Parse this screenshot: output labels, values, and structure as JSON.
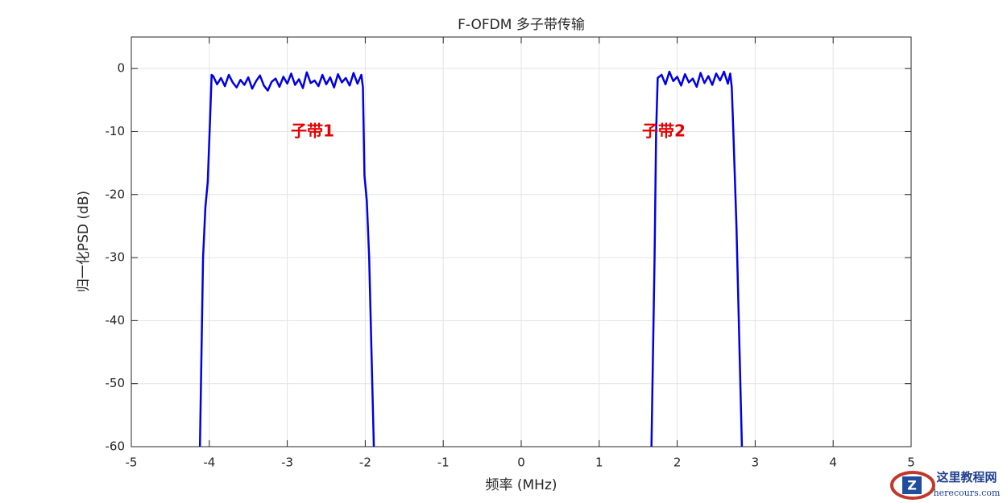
{
  "chart_data": {
    "type": "line",
    "title": "F-OFDM 多子带传输",
    "x_label": "频率 (MHz)",
    "y_label": "归一化PSD (dB)",
    "xlim": [
      -5,
      5
    ],
    "ylim": [
      -60,
      5
    ],
    "xticks": [
      -5,
      -4,
      -3,
      -2,
      -1,
      0,
      1,
      2,
      3,
      4,
      5
    ],
    "yticks": [
      -60,
      -50,
      -40,
      -30,
      -20,
      -10,
      0
    ],
    "grid": true,
    "annotations": [
      "子带1",
      "子带2"
    ],
    "x": [
      -4.12,
      -4.08,
      -4.05,
      -4.02,
      -3.99,
      -3.97,
      -3.95,
      -3.9,
      -3.85,
      -3.8,
      -3.75,
      -3.7,
      -3.65,
      -3.6,
      -3.55,
      -3.5,
      -3.45,
      -3.4,
      -3.35,
      -3.3,
      -3.25,
      -3.2,
      -3.15,
      -3.1,
      -3.05,
      -3.0,
      -2.95,
      -2.9,
      -2.85,
      -2.8,
      -2.75,
      -2.7,
      -2.65,
      -2.6,
      -2.55,
      -2.5,
      -2.45,
      -2.4,
      -2.35,
      -2.3,
      -2.25,
      -2.2,
      -2.15,
      -2.1,
      -2.05,
      -2.03,
      -2.01,
      -1.98,
      -1.95,
      -1.92,
      -1.89,
      0,
      1.67,
      1.71,
      1.73,
      1.75,
      1.8,
      1.85,
      1.9,
      1.95,
      2.0,
      2.05,
      2.1,
      2.15,
      2.2,
      2.25,
      2.3,
      2.35,
      2.4,
      2.45,
      2.5,
      2.55,
      2.6,
      2.65,
      2.68,
      2.7,
      2.72,
      2.76,
      2.8,
      2.83
    ],
    "series": [
      {
        "color": "#0000e6",
        "values": [
          -60,
          -30,
          -22,
          -18,
          -8,
          -1,
          -1.2,
          -2.5,
          -1.5,
          -2.8,
          -1.0,
          -2.2,
          -3.0,
          -1.8,
          -2.6,
          -1.4,
          -3.2,
          -2.0,
          -1.1,
          -2.7,
          -3.5,
          -2.1,
          -1.6,
          -2.9,
          -1.3,
          -2.4,
          -0.8,
          -2.6,
          -1.7,
          -3.1,
          -0.6,
          -2.3,
          -1.9,
          -2.8,
          -1.0,
          -2.5,
          -1.4,
          -3.0,
          -0.9,
          -2.2,
          -1.5,
          -2.7,
          -0.7,
          -2.4,
          -1.0,
          -3,
          -17,
          -21,
          -30,
          -45,
          -60,
          null,
          -60,
          -30,
          -10,
          -1.5,
          -1.0,
          -2.5,
          -0.5,
          -2.0,
          -1.3,
          -2.7,
          -0.9,
          -2.2,
          -1.6,
          -2.9,
          -0.7,
          -2.3,
          -1.2,
          -2.6,
          -0.8,
          -1.9,
          -0.5,
          -2.4,
          -0.8,
          -3,
          -10,
          -25,
          -45,
          -60
        ]
      }
    ]
  },
  "watermark": {
    "title": "这里教程网",
    "url": "herecours.com"
  }
}
